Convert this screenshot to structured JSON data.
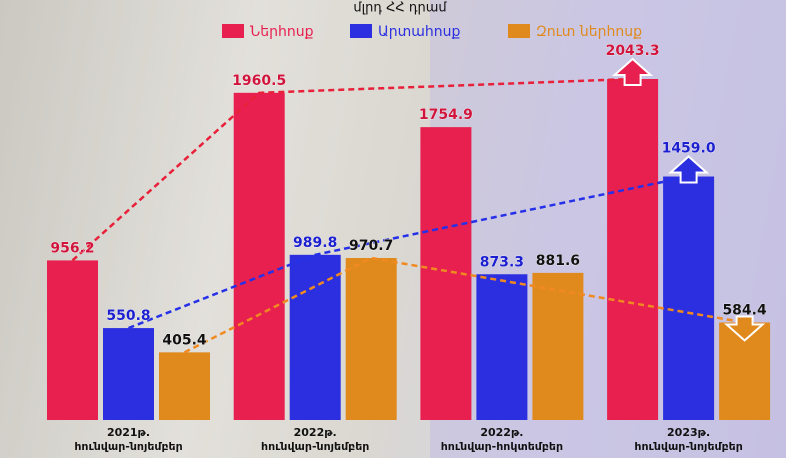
{
  "chart_data": {
    "type": "bar",
    "title": "մլրդ ՀՀ դրամ",
    "categories": [
      "2021թ.\nհունվար-նոյեմբեր",
      "2022թ.\nհունվար-նոյեմբեր",
      "2022թ.\nհունվար-հոկտեմբեր",
      "2023թ.\nհունվար-նոյեմբեր"
    ],
    "series": [
      {
        "name": "Ներհոսք",
        "color": "#e8204f",
        "values": [
          956.2,
          1960.5,
          1754.9,
          2043.3
        ]
      },
      {
        "name": "Արտահոսք",
        "color": "#2b2fe0",
        "values": [
          550.8,
          989.8,
          873.3,
          1459.0
        ],
        "value_labels": [
          "550.8",
          "989.8",
          "873.3",
          "1459.0"
        ]
      },
      {
        "name": "Զուտ ներհոսք",
        "color": "#e08a1e",
        "values": [
          405.4,
          970.7,
          881.6,
          584.4
        ]
      }
    ]
  }
}
